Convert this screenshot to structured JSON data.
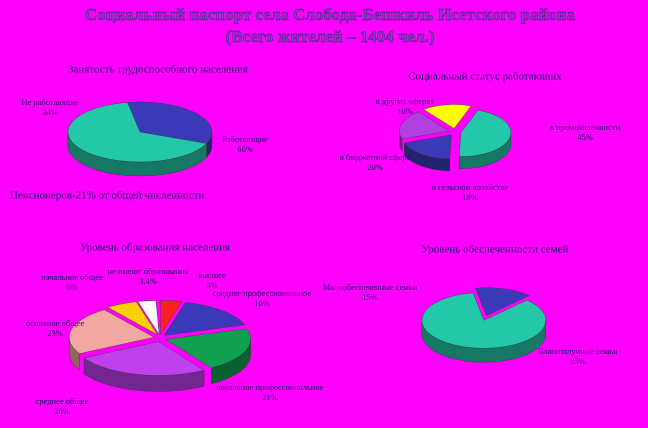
{
  "title": "Социальный паспорт села Слобода-Бешкиль Исетского района (Всего жителей – 1404 чел.)",
  "note": "Пенсионеров-21% от общей численности",
  "chart_data": [
    {
      "type": "pie",
      "title": "Занятость трудоспособного населения",
      "categories": [
        "Не работающие",
        "Работающие"
      ],
      "values": [
        34,
        66
      ],
      "value_labels": [
        "34%",
        "66%"
      ],
      "colors": [
        "#3a3ab8",
        "#22c8a8"
      ]
    },
    {
      "type": "pie",
      "title": "Социальный статус работающих",
      "categories": [
        "в промышленности",
        "в сельском хозяйстве",
        "в бюджетной сфере",
        "в других сферах"
      ],
      "values": [
        45,
        19,
        20,
        16
      ],
      "value_labels": [
        "45%",
        "19%",
        "20%",
        "16%"
      ],
      "colors": [
        "#22c8a8",
        "#3a3ab8",
        "#b040e0",
        "#ffff00"
      ]
    },
    {
      "type": "pie",
      "title": "Уровень образования населения",
      "categories": [
        "высшее",
        "среднее профессиональное",
        "начальное профессиональное",
        "среднее общее",
        "основное общее",
        "начальное общее",
        "не имеют образования"
      ],
      "values": [
        4,
        16,
        21,
        26,
        23,
        6,
        3.4
      ],
      "value_labels": [
        "4%",
        "16%",
        "21%",
        "26%",
        "23%",
        "6%",
        "3,4%"
      ],
      "colors": [
        "#ff2020",
        "#3a3ab8",
        "#10a050",
        "#c040f0",
        "#f0a8a0",
        "#ffd000",
        "#ffffff"
      ]
    },
    {
      "type": "pie",
      "title": "Уровень обеспеченности семей",
      "categories": [
        "Малообеспеченные семьи",
        "Благополучные семьи"
      ],
      "values": [
        15,
        85
      ],
      "value_labels": [
        "15%",
        "85%"
      ],
      "colors": [
        "#3a3ab8",
        "#22c8a8"
      ]
    }
  ]
}
